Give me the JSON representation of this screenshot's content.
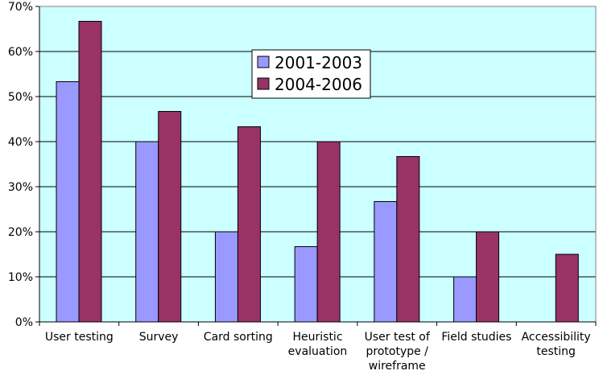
{
  "chart_data": {
    "type": "bar",
    "title": "",
    "xlabel": "",
    "ylabel": "",
    "ylim": [
      0,
      70
    ],
    "y_tick_step": 10,
    "y_tick_suffix": "%",
    "grid": "horizontal",
    "legend_position": "upper-center",
    "categories": [
      [
        "User testing"
      ],
      [
        "Survey"
      ],
      [
        "Card sorting"
      ],
      [
        "Heuristic",
        "evaluation"
      ],
      [
        "User test of",
        "prototype /",
        "wireframe"
      ],
      [
        "Field studies"
      ],
      [
        "Accessibility",
        "testing"
      ]
    ],
    "series": [
      {
        "name": "2001-2003",
        "color": "#9999FF",
        "values": [
          53.3,
          40,
          20,
          16.7,
          26.7,
          10,
          0
        ]
      },
      {
        "name": "2004-2006",
        "color": "#993366",
        "values": [
          66.7,
          46.7,
          43.3,
          40,
          36.7,
          20,
          15
        ]
      }
    ],
    "plot_background": "#CCFFFF",
    "border_color": "#808080"
  }
}
